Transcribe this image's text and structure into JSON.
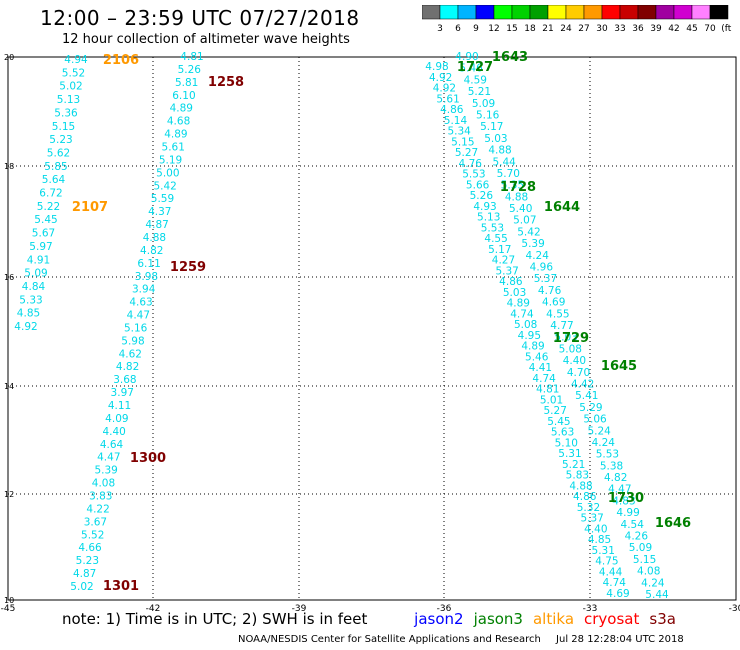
{
  "header": {
    "title": "12:00 – 23:59 UTC 07/27/2018",
    "subtitle": "12 hour collection of altimeter wave heights"
  },
  "colorbar": {
    "colors": [
      "#707070",
      "#00ffff",
      "#00b4ff",
      "#0000ff",
      "#00ff00",
      "#00d200",
      "#00a000",
      "#ffff00",
      "#ffcc00",
      "#ff9900",
      "#ff0000",
      "#c80000",
      "#800000",
      "#a000a0",
      "#d000d0",
      "#ff80ff",
      "#000000"
    ],
    "labels": [
      "3",
      "6",
      "9",
      "12",
      "15",
      "18",
      "21",
      "24",
      "27",
      "30",
      "33",
      "36",
      "39",
      "42",
      "45",
      "70",
      "(ft)"
    ]
  },
  "axes": {
    "lon_labels": [
      "-45",
      "-42",
      "-39",
      "-36",
      "-33",
      "-30"
    ],
    "lat_labels": [
      "20",
      "18",
      "16",
      "14",
      "12",
      "10"
    ]
  },
  "tracks": {
    "track1": [
      "4.94",
      "5.52",
      "5.02",
      "5.13",
      "5.36",
      "5.15",
      "5.23",
      "5.62",
      "5.85",
      "5.64",
      "6.72",
      "5.22",
      "5.45",
      "5.67",
      "5.97",
      "4.91",
      "5.09",
      "4.84",
      "5.33",
      "4.85",
      "4.92"
    ],
    "track2": [
      "4.81",
      "5.26",
      "5.81",
      "6.10",
      "4.89",
      "4.68",
      "4.89",
      "5.61",
      "5.19",
      "5.00",
      "5.42",
      "5.59",
      "4.37",
      "4.87",
      "4.88",
      "4.82",
      "6.11",
      "3.98",
      "3.94",
      "4.63",
      "4.47",
      "5.16",
      "5.98",
      "4.62",
      "4.82",
      "3.68",
      "3.97",
      "4.11",
      "4.09",
      "4.40",
      "4.64",
      "4.47",
      "5.39",
      "4.08",
      "3.83",
      "4.22",
      "3.67",
      "5.52",
      "4.66",
      "5.23",
      "4.87",
      "5.02"
    ],
    "track3": [
      "4.98",
      "4.92",
      "4.92",
      "5.61",
      "4.86",
      "5.14",
      "5.34",
      "5.15",
      "5.27",
      "4.76",
      "5.53",
      "5.66",
      "5.26",
      "4.93",
      "5.13",
      "5.53",
      "4.55",
      "5.17",
      "4.27",
      "5.37",
      "4.86",
      "5.03",
      "4.89",
      "4.74",
      "5.08",
      "4.95",
      "4.89",
      "5.46",
      "4.41",
      "4.74",
      "4.81",
      "5.01",
      "5.27",
      "5.45",
      "5.63",
      "5.10",
      "5.31",
      "5.21",
      "5.83",
      "4.88",
      "4.86",
      "5.32",
      "5.37",
      "4.40",
      "4.85",
      "5.31",
      "4.75",
      "4.44",
      "4.74",
      "4.69"
    ],
    "track4": [
      "4.90",
      "5.46",
      "4.59",
      "5.21",
      "5.09",
      "5.16",
      "5.17",
      "5.03",
      "4.88",
      "5.44",
      "5.70",
      "5.35",
      "4.88",
      "5.40",
      "5.07",
      "5.42",
      "5.39",
      "4.24",
      "4.96",
      "5.37",
      "4.76",
      "4.69",
      "4.55",
      "4.77",
      "5.03",
      "5.08",
      "4.40",
      "4.70",
      "4.42",
      "5.41",
      "5.29",
      "5.06",
      "5.24",
      "4.24",
      "5.53",
      "5.38",
      "4.82",
      "4.47",
      "4.83",
      "4.99",
      "4.54",
      "4.26",
      "5.09",
      "5.15",
      "4.08",
      "4.24",
      "5.44"
    ]
  },
  "time_labels": {
    "altika": [
      {
        "text": "2106",
        "color": "#ff9900"
      },
      {
        "text": "2107",
        "color": "#ff9900"
      }
    ],
    "cryosat": [
      {
        "text": "1258",
        "color": "#800000"
      },
      {
        "text": "1259",
        "color": "#800000"
      },
      {
        "text": "1300",
        "color": "#800000"
      },
      {
        "text": "1301",
        "color": "#800000"
      }
    ],
    "jason3": [
      {
        "text": "1643",
        "color": "#008000"
      },
      {
        "text": "1727",
        "color": "#008000"
      },
      {
        "text": "1728",
        "color": "#008000"
      },
      {
        "text": "1644",
        "color": "#008000"
      },
      {
        "text": "1729",
        "color": "#008000"
      },
      {
        "text": "1645",
        "color": "#008000"
      },
      {
        "text": "1730",
        "color": "#008000"
      },
      {
        "text": "1646",
        "color": "#008000"
      }
    ]
  },
  "footer": {
    "note": "note:  1) Time is in UTC;  2) SWH is in feet",
    "satellites": [
      {
        "name": "jason2",
        "color": "#0000ff"
      },
      {
        "name": "jason3",
        "color": "#008000"
      },
      {
        "name": "altika",
        "color": "#ff9900"
      },
      {
        "name": "cryosat",
        "color": "#ff0000"
      },
      {
        "name": "s3a",
        "color": "#800000"
      }
    ],
    "credit": "NOAA/NESDIS Center for Satellite Applications and Research",
    "timestamp": "Jul 28 12:28:04 UTC 2018"
  },
  "colors": {
    "wave_text": "#00d8e8",
    "grid": "#000000"
  }
}
